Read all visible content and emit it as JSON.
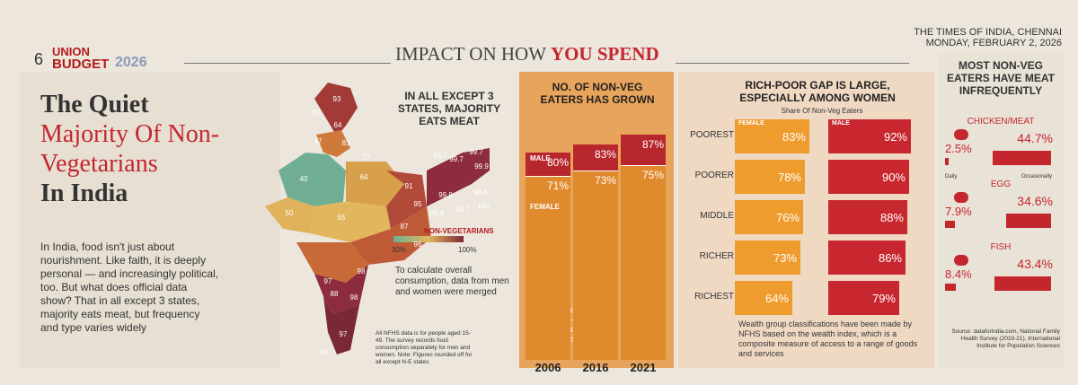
{
  "header": {
    "page": "6",
    "brand_top": "UNION",
    "brand_bottom": "BUDGET",
    "brand_year": "2026",
    "section_a": "IMPACT ON HOW",
    "section_b": "YOU SPEND",
    "paper": "THE TIMES OF INDIA, CHENNAI",
    "date": "MONDAY, FEBRUARY 2, 2026"
  },
  "intro": {
    "title_1": "The Quiet",
    "title_2": "Majority Of Non-Vegetarians",
    "title_3": "In India",
    "body": "In India, food isn't just about nourishment. Like faith, it is deeply personal — and increasingly political, too. But what does official data show? That in all except 3 states, majority eats meat, but frequency and type varies widely"
  },
  "map": {
    "title": "IN ALL EXCEPT 3 STATES, MAJORITY EATS MEAT",
    "region_values": [
      93,
      92,
      64,
      47,
      83,
      77,
      40,
      64,
      50,
      55,
      91,
      98.7,
      99.7,
      99.7,
      99.9,
      99.8,
      99.8,
      99.7,
      100,
      95,
      99.4,
      87,
      96,
      98,
      97,
      88,
      98,
      97,
      99
    ],
    "legend_title": "NON-VEGETARIANS",
    "legend_min": "30%",
    "legend_max": "100%",
    "note": "To calculate overall consumption, data from men and women were merged",
    "footnote": "All NFHS data is for people aged 15-49. The survey records food consumption separately for men and women. Note: Figures rounded off for all except N-E states"
  },
  "growth": {
    "title": "NO. OF NON-VEG EATERS HAS GROWN",
    "years": [
      "2006",
      "2016",
      "2021"
    ],
    "male_label": "MALE",
    "female_label": "FEMALE",
    "male": {
      "values": [
        80,
        83,
        87
      ],
      "value_labels": [
        "80%",
        "83%",
        "87%"
      ]
    },
    "female": {
      "values": [
        71,
        73,
        75
      ],
      "value_labels": [
        "71%",
        "73%",
        "75%"
      ]
    },
    "note": "Data is for people aged 15-49 years. ‘Meat’ includes egg, fish, chicken, etc"
  },
  "gap": {
    "title": "RICH-POOR GAP IS LARGE, ESPECIALLY AMONG WOMEN",
    "subtitle": "Share Of Non-Veg Eaters",
    "groups": [
      "POOREST",
      "POORER",
      "MIDDLE",
      "RICHER",
      "RICHEST"
    ],
    "female_label": "FEMALE",
    "male_label": "MALE",
    "female": {
      "values": [
        83,
        78,
        76,
        73,
        64
      ],
      "value_labels": [
        "83%",
        "78%",
        "76%",
        "73%",
        "64%"
      ]
    },
    "male": {
      "values": [
        92,
        90,
        88,
        86,
        79
      ],
      "value_labels": [
        "92%",
        "90%",
        "88%",
        "86%",
        "79%"
      ]
    },
    "note": "Wealth group classifications have been made by NFHS based on the wealth index, which is a composite measure of access to a range of goods and services"
  },
  "frequency": {
    "title": "MOST NON-VEG EATERS HAVE MEAT INFREQUENTLY",
    "daily_label": "Daily",
    "occasional_label": "Occasionally",
    "items": [
      {
        "name": "CHICKEN/MEAT",
        "daily": 2.5,
        "daily_label": "2.5%",
        "occasional": 44.7,
        "occasional_label": "44.7%"
      },
      {
        "name": "EGG",
        "daily": 7.9,
        "daily_label": "7.9%",
        "occasional": 34.6,
        "occasional_label": "34.6%"
      },
      {
        "name": "FISH",
        "daily": 8.4,
        "daily_label": "8.4%",
        "occasional": 43.4,
        "occasional_label": "43.4%"
      }
    ],
    "source": "Source: dataforindia.com, National Family Health Survey (2019-21), International Institute for Population Sciences"
  }
}
